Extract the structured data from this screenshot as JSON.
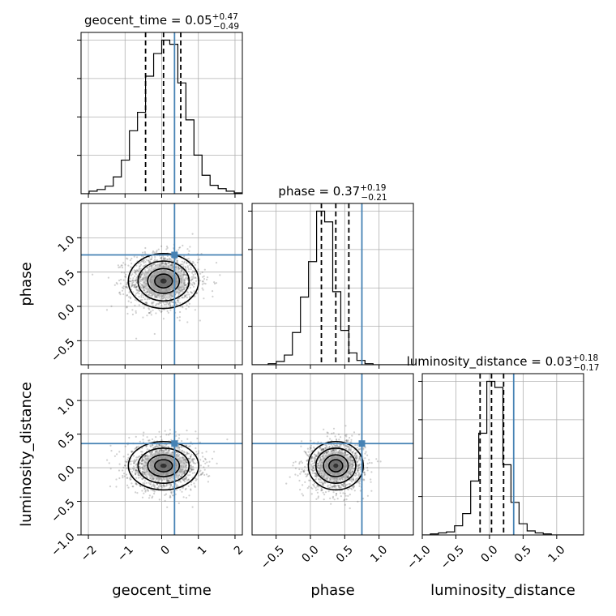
{
  "chart_data": {
    "type": "corner",
    "parameters": [
      {
        "name": "geocent_time",
        "axis_label": "geocent_time",
        "range": [
          -2.2,
          2.2
        ],
        "ticks": [
          -2,
          -1,
          0,
          1,
          2
        ],
        "tick_labels": [
          "−2",
          "−1",
          "0",
          "1",
          "2"
        ],
        "truth": 0.35,
        "median": 0.05,
        "q_low": -0.44,
        "q_high": 0.52,
        "title_main": "geocent_time = 0.05",
        "title_sup": "+0.47",
        "title_sub": "−0.49",
        "histogram": {
          "edges_start": -2.2,
          "bin_width": 0.22,
          "counts": [
            0,
            3,
            5,
            9,
            20,
            40,
            75,
            97,
            140,
            167,
            183,
            178,
            132,
            88,
            46,
            22,
            10,
            6,
            3,
            1
          ]
        }
      },
      {
        "name": "phase",
        "axis_label": "phase",
        "range": [
          -0.85,
          1.5
        ],
        "ticks": [
          -0.5,
          0.0,
          0.5,
          1.0
        ],
        "tick_labels": [
          "−0.5",
          "0.0",
          "0.5",
          "1.0"
        ],
        "truth": 0.75,
        "median": 0.37,
        "q_low": 0.16,
        "q_high": 0.56,
        "title_main": "phase = 0.37",
        "title_sup": "+0.19",
        "title_sub": "−0.21",
        "histogram": {
          "edges_start": -0.85,
          "bin_width": 0.1175,
          "counts": [
            0,
            0,
            1,
            3,
            9,
            30,
            63,
            96,
            143,
            133,
            68,
            32,
            11,
            4,
            1,
            0,
            0,
            0,
            0,
            0
          ]
        }
      },
      {
        "name": "luminosity_distance",
        "axis_label": "luminosity_distance",
        "range": [
          -1.0,
          1.4
        ],
        "ticks": [
          -1.0,
          -0.5,
          0.0,
          0.5,
          1.0
        ],
        "tick_labels": [
          "−1.0",
          "−0.5",
          "0.0",
          "0.5",
          "1.0"
        ],
        "truth": 0.36,
        "median": 0.03,
        "q_low": -0.14,
        "q_high": 0.21,
        "title_main": "luminosity_distance = 0.03",
        "title_sup": "+0.18",
        "title_sub": "−0.17",
        "histogram": {
          "edges_start": -1.0,
          "bin_width": 0.12,
          "counts": [
            0,
            1,
            2,
            3,
            9,
            21,
            53,
            100,
            151,
            145,
            69,
            32,
            11,
            4,
            2,
            1,
            0,
            0,
            0,
            0
          ]
        }
      }
    ],
    "pairs": [
      {
        "x": "geocent_time",
        "y": "phase",
        "x_center": 0.05,
        "y_center": 0.37,
        "sigma_x": 0.48,
        "sigma_y": 0.2,
        "contour_levels": 4
      },
      {
        "x": "geocent_time",
        "y": "luminosity_distance",
        "x_center": 0.05,
        "y_center": 0.03,
        "sigma_x": 0.48,
        "sigma_y": 0.18,
        "contour_levels": 4
      },
      {
        "x": "phase",
        "y": "luminosity_distance",
        "x_center": 0.37,
        "y_center": 0.03,
        "sigma_x": 0.2,
        "sigma_y": 0.18,
        "contour_levels": 4
      }
    ],
    "truth_color": "#4682b4",
    "line_color": "#000000",
    "grid": true
  }
}
